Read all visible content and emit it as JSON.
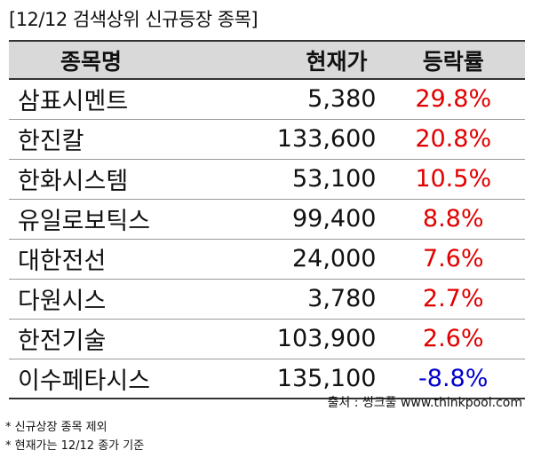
{
  "title": "[12/12 검색상위 신규등장 종목]",
  "headers": {
    "name": "종목명",
    "price": "현재가",
    "change": "등락률"
  },
  "rows": [
    {
      "name": "삼표시멘트",
      "price": "5,380",
      "change": "29.8%",
      "direction": "up"
    },
    {
      "name": "한진칼",
      "price": "133,600",
      "change": "20.8%",
      "direction": "up"
    },
    {
      "name": "한화시스템",
      "price": "53,100",
      "change": "10.5%",
      "direction": "up"
    },
    {
      "name": "유일로보틱스",
      "price": "99,400",
      "change": "8.8%",
      "direction": "up"
    },
    {
      "name": "대한전선",
      "price": "24,000",
      "change": "7.6%",
      "direction": "up"
    },
    {
      "name": "다원시스",
      "price": "3,780",
      "change": "2.7%",
      "direction": "up"
    },
    {
      "name": "한전기술",
      "price": "103,900",
      "change": "2.6%",
      "direction": "up"
    },
    {
      "name": "이수페타시스",
      "price": "135,100",
      "change": "-8.8%",
      "direction": "down"
    }
  ],
  "source": "출처 : 씽크풀 www.thinkpool.com",
  "notes": [
    "* 신규상장 종목 제외",
    "* 현재가는 12/12 종가 기준"
  ],
  "colors": {
    "up": "#e00000",
    "down": "#0000cc",
    "header_bg": "#d9d9d9"
  }
}
